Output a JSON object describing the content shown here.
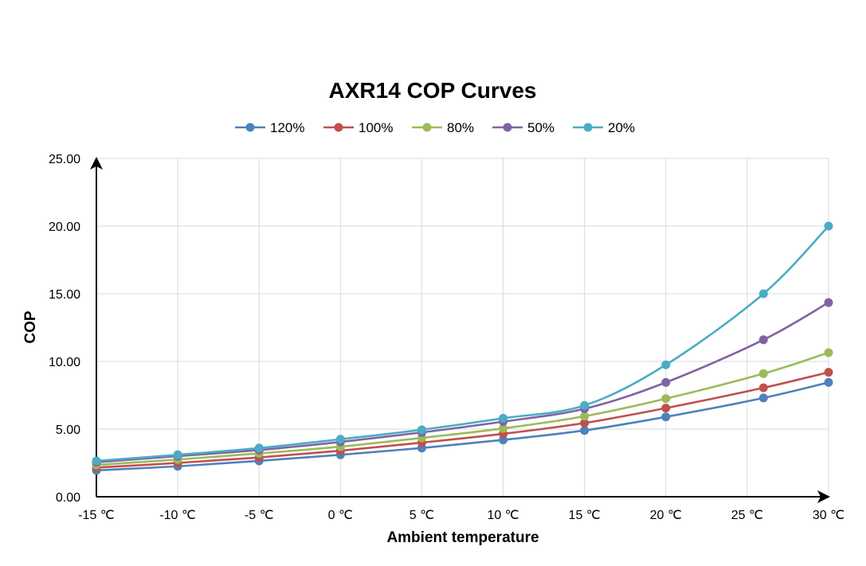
{
  "chart_data": {
    "type": "line",
    "title": "AXR14 COP Curves",
    "xlabel": "Ambient temperature",
    "ylabel": "COP",
    "categories": [
      "-15 ℃",
      "-10 ℃",
      "-5 ℃",
      "0 ℃",
      "5 ℃",
      "10 ℃",
      "15 ℃",
      "20 ℃",
      "25 ℃",
      "30 ℃"
    ],
    "x_positions": [
      -15,
      -10,
      -5,
      0,
      5,
      10,
      15,
      20,
      25,
      30
    ],
    "yticks": [
      "0.00",
      "5.00",
      "10.00",
      "15.00",
      "20.00",
      "25.00"
    ],
    "ylim": [
      0,
      25
    ],
    "grid": true,
    "legend_position": "top",
    "smooth": true,
    "series": [
      {
        "name": "120%",
        "color": "#4F81BD",
        "x": [
          -15,
          -10,
          -5,
          0,
          5,
          10,
          15,
          20,
          26,
          30
        ],
        "values": [
          1.95,
          2.25,
          2.65,
          3.1,
          3.6,
          4.2,
          4.9,
          5.9,
          7.3,
          8.45
        ]
      },
      {
        "name": "100%",
        "color": "#C0504D",
        "x": [
          -15,
          -10,
          -5,
          0,
          5,
          10,
          15,
          20,
          26,
          30
        ],
        "values": [
          2.15,
          2.5,
          2.9,
          3.4,
          4.0,
          4.65,
          5.45,
          6.55,
          8.05,
          9.2
        ]
      },
      {
        "name": "80%",
        "color": "#9BBB59",
        "x": [
          -15,
          -10,
          -5,
          0,
          5,
          10,
          15,
          20,
          26,
          30
        ],
        "values": [
          2.35,
          2.75,
          3.2,
          3.7,
          4.35,
          5.05,
          5.95,
          7.25,
          9.1,
          10.65
        ]
      },
      {
        "name": "50%",
        "color": "#8064A2",
        "x": [
          -15,
          -10,
          -5,
          0,
          5,
          10,
          15,
          20,
          26,
          30
        ],
        "values": [
          2.55,
          3.0,
          3.45,
          4.05,
          4.75,
          5.55,
          6.5,
          8.45,
          11.6,
          14.35
        ]
      },
      {
        "name": "20%",
        "color": "#4BACC6",
        "x": [
          -15,
          -10,
          -5,
          0,
          5,
          10,
          15,
          20,
          26,
          30
        ],
        "values": [
          2.65,
          3.1,
          3.6,
          4.25,
          4.95,
          5.8,
          6.75,
          9.75,
          15.0,
          20.0
        ]
      }
    ]
  }
}
